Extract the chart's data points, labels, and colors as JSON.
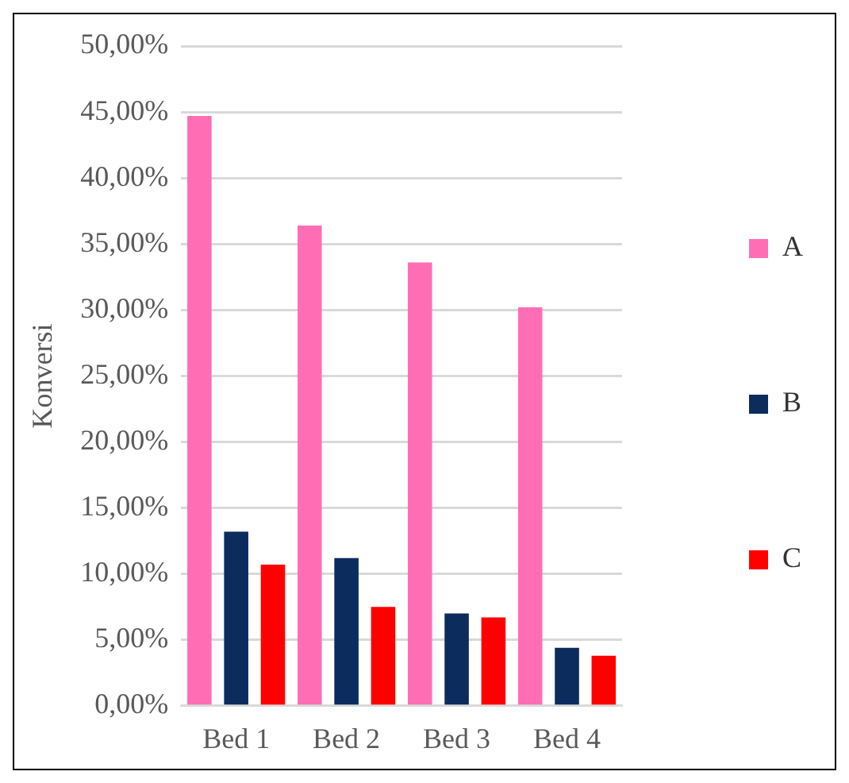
{
  "chart_data": {
    "type": "bar",
    "ylabel": "Konversi",
    "categories": [
      "Bed 1",
      "Bed 2",
      "Bed 3",
      "Bed 4"
    ],
    "series": [
      {
        "name": "A",
        "color": "#ff6eb4",
        "values": [
          44.7,
          36.4,
          33.6,
          30.2
        ]
      },
      {
        "name": "B",
        "color": "#0c2c5e",
        "values": [
          13.2,
          11.2,
          7.0,
          4.4
        ]
      },
      {
        "name": "C",
        "color": "#ff0000",
        "values": [
          10.7,
          7.5,
          6.7,
          3.8
        ]
      }
    ],
    "ylim": [
      0,
      50
    ],
    "yticks": [
      {
        "value": 0,
        "label": "0,00%"
      },
      {
        "value": 5,
        "label": "5,00%"
      },
      {
        "value": 10,
        "label": "10,00%"
      },
      {
        "value": 15,
        "label": "15,00%"
      },
      {
        "value": 20,
        "label": "20,00%"
      },
      {
        "value": 25,
        "label": "25,00%"
      },
      {
        "value": 30,
        "label": "30,00%"
      },
      {
        "value": 35,
        "label": "35,00%"
      },
      {
        "value": 40,
        "label": "40,00%"
      },
      {
        "value": 45,
        "label": "45,00%"
      },
      {
        "value": 50,
        "label": "50,00%"
      }
    ],
    "grid": "y",
    "legend": "right"
  }
}
